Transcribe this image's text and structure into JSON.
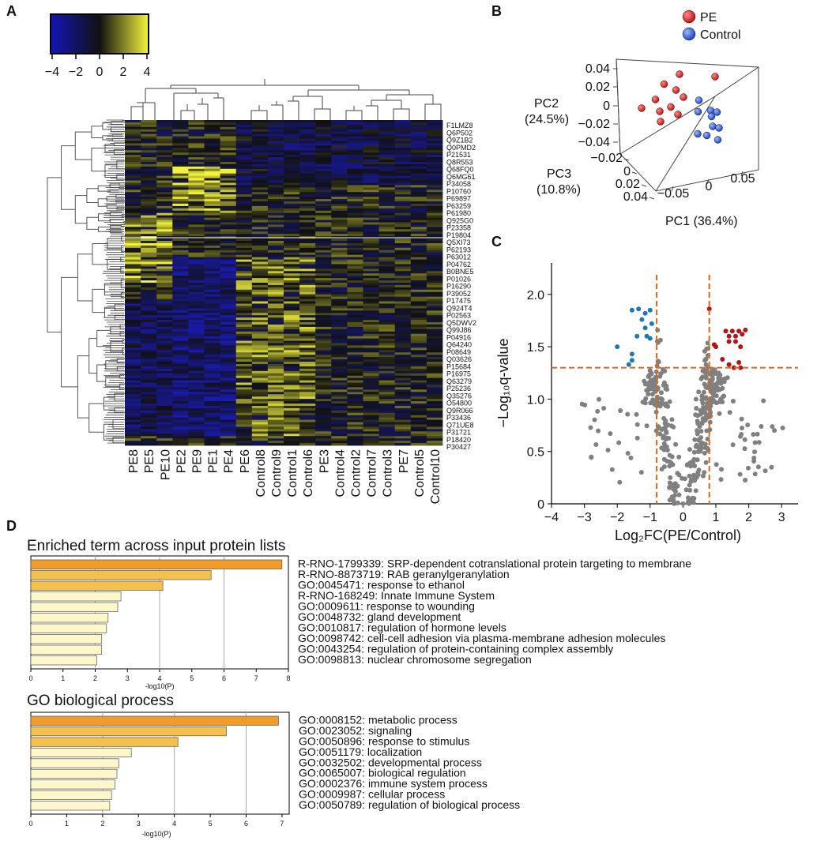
{
  "panels": {
    "a": "A",
    "b": "B",
    "c": "C",
    "d": "D"
  },
  "colors": {
    "heat_low": "#1a1ab4",
    "heat_mid": "#111111",
    "heat_high": "#f2f23a",
    "pe": "#c0161b",
    "control": "#3d6fd1",
    "volcano_up": "#b31414",
    "volcano_down": "#1f78b4",
    "volcano_ns": "#808080",
    "threshold": "#d2691e",
    "bar_dark": "#f29a2a",
    "bar_mid": "#f5c14d",
    "bar_light": "#fdf7c9"
  },
  "chart_data": [
    {
      "id": "heatmap",
      "type": "heatmap",
      "colorbar": {
        "min": -4,
        "max": 4,
        "ticks": [
          "−4",
          "−2",
          "0",
          "2",
          "4"
        ]
      },
      "columns": [
        "PE8",
        "PE5",
        "PE10",
        "PE2",
        "PE9",
        "PE1",
        "PE4",
        "PE6",
        "Control8",
        "Control9",
        "Control1",
        "Control6",
        "PE3",
        "Control4",
        "Control2",
        "Control7",
        "Control3",
        "PE7",
        "Control5",
        "Control10"
      ],
      "row_labels": [
        "F1LMZ8",
        "Q6P502",
        "Q9Z1B2",
        "Q0PMD2",
        "P21531",
        "Q8R553",
        "Q68FQ0",
        "Q6MG61",
        "P34058",
        "P10760",
        "P69897",
        "P63259",
        "P61980",
        "Q925G0",
        "P23358",
        "P19804",
        "Q5XI73",
        "P62193",
        "P63012",
        "P04762",
        "B0BNE5",
        "P01026",
        "P16290",
        "P39052",
        "P17475",
        "Q924T4",
        "P02563",
        "Q5DWV2",
        "Q99J86",
        "P04916",
        "Q64240",
        "P08649",
        "Q03626",
        "P15684",
        "P16975",
        "Q63279",
        "P25236",
        "Q35276",
        "O54800",
        "Q9R066",
        "P33436",
        "Q71UE8",
        "P31721",
        "P18420",
        "P30427"
      ]
    },
    {
      "id": "pca",
      "type": "scatter",
      "legend": [
        "PE",
        "Control"
      ],
      "axes": {
        "pc1": "PC1 (36.4%)",
        "pc2_name": "PC2",
        "pc2_pct": "(24.5%)",
        "pc3_name": "PC3",
        "pc3_pct": "(10.8%)"
      },
      "ticks": {
        "pc2": [
          "0.04",
          "0.02",
          "0",
          "−0.02",
          "−0.04"
        ],
        "pc3": [
          "−0.02",
          "0",
          "0.02",
          "0.04"
        ],
        "pc1": [
          "−0.05",
          "0",
          "0.05"
        ]
      },
      "pe_points": [
        [
          0.06,
          0.04,
          0.01
        ],
        [
          -0.045,
          0.025,
          0
        ],
        [
          -0.06,
          0.01,
          0.02
        ],
        [
          -0.03,
          0.03,
          -0.01
        ],
        [
          -0.03,
          0.015,
          -0.005
        ],
        [
          -0.01,
          0.01,
          0.0
        ],
        [
          -0.04,
          0.0,
          0.01
        ],
        [
          -0.02,
          -0.01,
          0.0
        ],
        [
          -0.035,
          0.02,
          0.02
        ],
        [
          -0.02,
          0.005,
          0.01
        ],
        [
          -0.045,
          -0.015,
          0.005
        ]
      ],
      "control_points": [
        [
          0.005,
          0.0,
          -0.01
        ],
        [
          0.01,
          -0.01,
          -0.005
        ],
        [
          0.02,
          -0.015,
          -0.015
        ],
        [
          0.025,
          -0.02,
          -0.02
        ],
        [
          0.015,
          -0.025,
          -0.02
        ],
        [
          -0.01,
          -0.045,
          -0.02
        ],
        [
          0.0,
          -0.05,
          -0.025
        ],
        [
          0.02,
          -0.055,
          -0.025
        ],
        [
          0.03,
          -0.03,
          -0.01
        ],
        [
          0.035,
          -0.035,
          -0.015
        ]
      ]
    },
    {
      "id": "volcano",
      "type": "scatter",
      "xlabel": "Log₂FC(PE/Control)",
      "ylabel": "−Log₁₀q-value",
      "xlim": [
        -4,
        3.5
      ],
      "ylim": [
        0,
        2.3
      ],
      "xticks": [
        "−4",
        "−3",
        "−2",
        "−1",
        "0",
        "1",
        "2",
        "3"
      ],
      "yticks": [
        "0",
        "0.5",
        "1.0",
        "1.5",
        "2.0"
      ],
      "thresholds": {
        "x": [
          -0.8,
          0.8
        ],
        "y": 1.3
      },
      "up": [
        [
          0.8,
          1.86
        ],
        [
          1.3,
          1.65
        ],
        [
          1.5,
          1.65
        ],
        [
          1.7,
          1.65
        ],
        [
          1.9,
          1.66
        ],
        [
          1.4,
          1.6
        ],
        [
          1.6,
          1.6
        ],
        [
          1.8,
          1.62
        ],
        [
          1.4,
          1.55
        ],
        [
          1.6,
          1.55
        ],
        [
          0.95,
          1.52
        ],
        [
          1.0,
          1.5
        ],
        [
          1.75,
          1.5
        ],
        [
          1.2,
          1.38
        ],
        [
          1.4,
          1.33
        ],
        [
          1.7,
          1.35
        ],
        [
          1.75,
          1.3
        ],
        [
          1.55,
          1.3
        ]
      ],
      "down": [
        [
          -1.55,
          1.85
        ],
        [
          -1.35,
          1.86
        ],
        [
          -1.15,
          1.82
        ],
        [
          -1.0,
          1.85
        ],
        [
          -1.25,
          1.76
        ],
        [
          -0.95,
          1.72
        ],
        [
          -1.15,
          1.68
        ],
        [
          -1.1,
          1.6
        ],
        [
          -1.0,
          1.58
        ],
        [
          -1.4,
          1.6
        ],
        [
          -2.0,
          1.5
        ],
        [
          -1.55,
          1.43
        ],
        [
          -1.55,
          1.37
        ],
        [
          -1.65,
          1.33
        ]
      ]
    },
    {
      "id": "enrichment_lists",
      "type": "bar",
      "title": "Enriched term across input protein lists",
      "xlabel": "-log10(P)",
      "xlim": [
        0,
        8
      ],
      "xticks": [
        "0",
        "1",
        "2",
        "3",
        "4",
        "5",
        "6",
        "7",
        "8"
      ],
      "categories": [
        "R-RNO-1799339: SRP-dependent cotranslational protein targeting to membrane",
        "R-RNO-8873719: RAB geranylgeranylation",
        "GO:0045471: response to ethanol",
        "R-RNO-168249: Innate Immune System",
        "GO:0009611: response to wounding",
        "GO:0048732: gland development",
        "GO:0010817: regulation of hormone levels",
        "GO:0098742: cell-cell adhesion via plasma-membrane adhesion molecules",
        "GO:0043254: regulation of protein-containing complex assembly",
        "GO:0098813: nuclear chromosome segregation"
      ],
      "values": [
        7.8,
        5.6,
        4.1,
        2.8,
        2.7,
        2.4,
        2.35,
        2.2,
        2.2,
        2.05
      ]
    },
    {
      "id": "go_bp",
      "type": "bar",
      "title": "GO biological process",
      "xlabel": "-log10(P)",
      "xlim": [
        0,
        7.2
      ],
      "xticks": [
        "0",
        "1",
        "2",
        "3",
        "4",
        "5",
        "6",
        "7"
      ],
      "categories": [
        "GO:0008152: metabolic process",
        "GO:0023052: signaling",
        "GO:0050896: response to stimulus",
        "GO:0051179: localization",
        "GO:0032502: developmental process",
        "GO:0065007: biological regulation",
        "GO:0002376: immune system process",
        "GO:0009987: cellular process",
        "GO:0050789: regulation of biological process"
      ],
      "values": [
        6.9,
        5.45,
        4.1,
        2.8,
        2.45,
        2.4,
        2.35,
        2.25,
        2.2
      ]
    }
  ]
}
